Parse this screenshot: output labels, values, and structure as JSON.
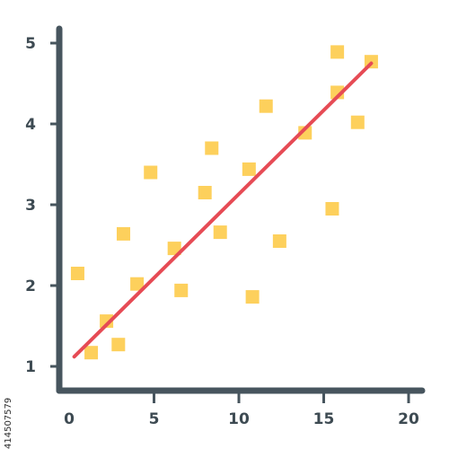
{
  "chart_data": {
    "type": "scatter",
    "title": "",
    "xlabel": "",
    "ylabel": "",
    "xlim": [
      0,
      20
    ],
    "ylim": [
      1,
      5
    ],
    "x_ticks": [
      "0",
      "5",
      "10",
      "15",
      "20"
    ],
    "y_ticks": [
      "1",
      "2",
      "3",
      "4",
      "5"
    ],
    "grid": false,
    "series": [
      {
        "points": [
          {
            "x": 0.5,
            "y": 2.15
          },
          {
            "x": 1.3,
            "y": 1.17
          },
          {
            "x": 2.2,
            "y": 1.56
          },
          {
            "x": 2.9,
            "y": 1.27
          },
          {
            "x": 3.2,
            "y": 2.64
          },
          {
            "x": 4.0,
            "y": 2.02
          },
          {
            "x": 4.8,
            "y": 3.4
          },
          {
            "x": 6.2,
            "y": 2.46
          },
          {
            "x": 6.6,
            "y": 1.94
          },
          {
            "x": 8.0,
            "y": 3.15
          },
          {
            "x": 8.4,
            "y": 3.7
          },
          {
            "x": 8.9,
            "y": 2.66
          },
          {
            "x": 10.6,
            "y": 3.44
          },
          {
            "x": 10.8,
            "y": 1.86
          },
          {
            "x": 11.6,
            "y": 4.22
          },
          {
            "x": 12.4,
            "y": 2.55
          },
          {
            "x": 13.9,
            "y": 3.89
          },
          {
            "x": 15.5,
            "y": 2.95
          },
          {
            "x": 15.8,
            "y": 4.39
          },
          {
            "x": 15.8,
            "y": 4.89
          },
          {
            "x": 17.0,
            "y": 4.02
          },
          {
            "x": 17.8,
            "y": 4.77
          }
        ]
      }
    ],
    "trendline": {
      "x1": 0.3,
      "y1": 1.12,
      "x2": 17.8,
      "y2": 4.75
    },
    "colors": {
      "axis": "#47555e",
      "marker": "#fdd05c",
      "trendline": "#e64b55",
      "tick_text": "#3d4a52"
    }
  },
  "watermark": "414507579"
}
